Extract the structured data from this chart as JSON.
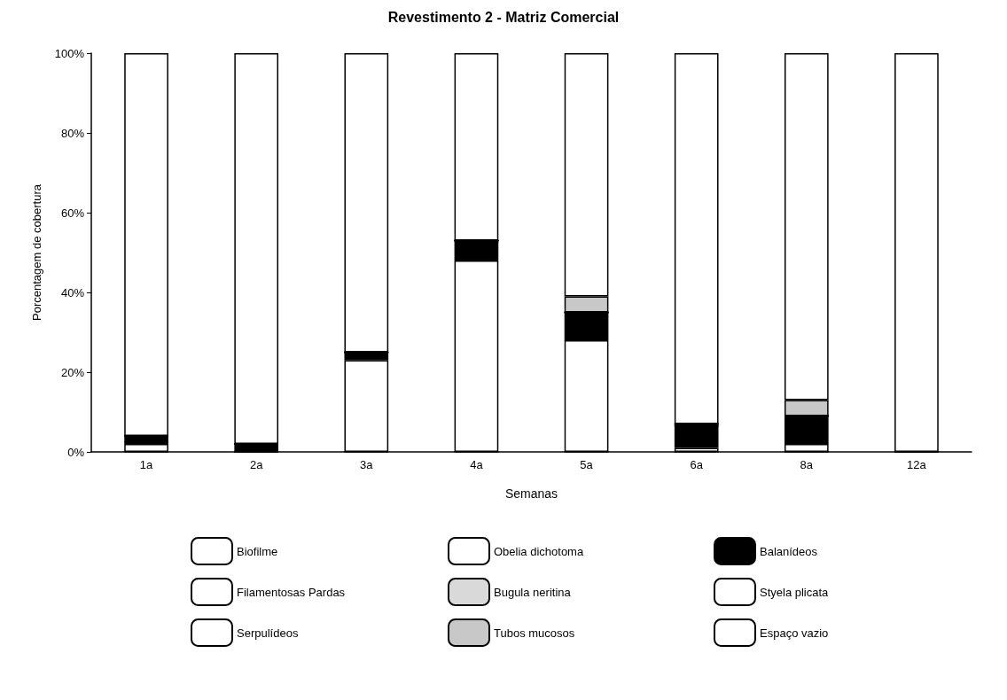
{
  "chart_data": {
    "type": "bar",
    "title": "Revestimento 2 - Matriz Comercial",
    "xlabel": "Semanas",
    "ylabel": "Porcentagem de cobertura",
    "categories": [
      "1a",
      "2a",
      "3a",
      "4a",
      "5a",
      "6a",
      "8a",
      "12a"
    ],
    "stacked": true,
    "ylim": [
      0,
      100
    ],
    "yticks": [
      {
        "value": 0,
        "label": "0%"
      },
      {
        "value": 20,
        "label": "20%"
      },
      {
        "value": 40,
        "label": "40%"
      },
      {
        "value": 60,
        "label": "60%"
      },
      {
        "value": 80,
        "label": "80%"
      },
      {
        "value": 100,
        "label": "100%"
      }
    ],
    "grid": false,
    "legend": "bottom",
    "series": [
      {
        "name": "Biofilme",
        "color": "#ffffff",
        "values": [
          0,
          0,
          0,
          0,
          0,
          0,
          0,
          0
        ]
      },
      {
        "name": "Obelia dichotoma",
        "color": "#ffffff",
        "values": [
          2,
          0,
          23,
          48,
          28,
          1,
          2,
          0
        ]
      },
      {
        "name": "Balanídeos",
        "color": "#000000",
        "values": [
          2,
          2,
          2,
          5,
          7,
          5.5,
          7,
          0
        ]
      },
      {
        "name": "Filamentosas Pardas",
        "color": "#ffffff",
        "values": [
          0,
          0,
          0,
          0,
          0,
          0,
          0,
          0
        ]
      },
      {
        "name": "Bugula neritina",
        "color": "#d9d9d9",
        "values": [
          0,
          0,
          0,
          0,
          0,
          0.5,
          0,
          0
        ]
      },
      {
        "name": "Styela plicata",
        "color": "#ffffff",
        "values": [
          0,
          0,
          0,
          0,
          0,
          0,
          0,
          0
        ]
      },
      {
        "name": "Serpulídeos",
        "color": "#ffffff",
        "values": [
          0,
          0,
          0,
          0,
          0,
          0,
          0,
          0
        ]
      },
      {
        "name": "Tubos mucosos",
        "color": "#c8c8c8",
        "values": [
          0,
          0,
          0,
          0,
          4,
          0,
          4,
          0
        ]
      },
      {
        "name": "Espaço vazio",
        "color": "#ffffff",
        "values": [
          96,
          98,
          75,
          47,
          61,
          93,
          87,
          100
        ]
      }
    ]
  }
}
